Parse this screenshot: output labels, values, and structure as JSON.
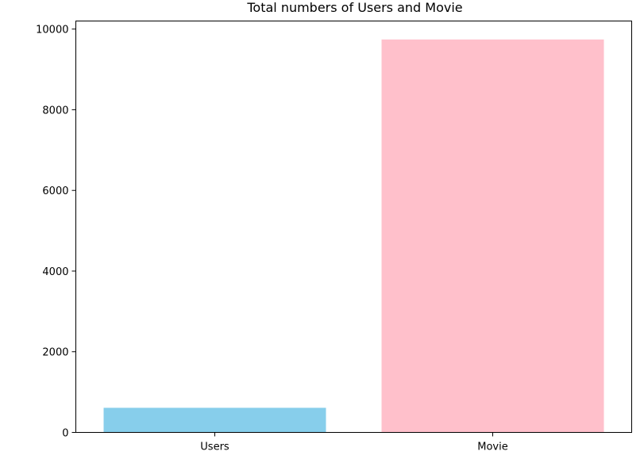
{
  "chart_data": {
    "type": "bar",
    "title": "Total numbers of Users and Movie",
    "categories": [
      "Users",
      "Movie"
    ],
    "values": [
      610,
      9742
    ],
    "colors": [
      "#87ceeb",
      "#ffc0cb"
    ],
    "ylim": [
      0,
      10200
    ],
    "yticks": [
      0,
      2000,
      4000,
      6000,
      8000,
      10000
    ],
    "ytick_labels": [
      "0",
      "2000",
      "4000",
      "6000",
      "8000",
      "10000"
    ],
    "xlabel": "",
    "ylabel": "",
    "grid": false
  }
}
